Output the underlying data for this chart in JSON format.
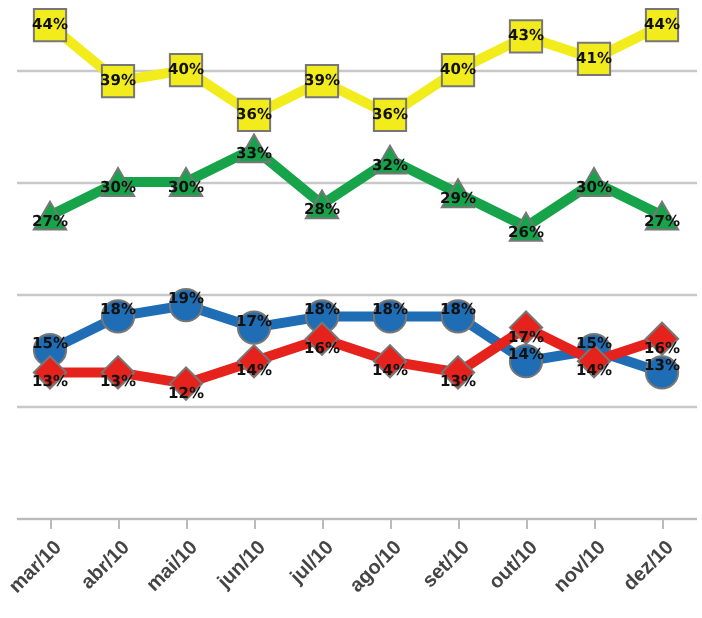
{
  "chart_data": {
    "type": "line",
    "categories": [
      "mar/10",
      "abr/10",
      "mai/10",
      "jun/10",
      "jul/10",
      "ago/10",
      "set/10",
      "out/10",
      "nov/10",
      "dez/10"
    ],
    "series": [
      {
        "color": "#f2ec1c",
        "marker": "square",
        "values": [
          44,
          39,
          40,
          36,
          39,
          36,
          40,
          43,
          41,
          44
        ],
        "value_labels": [
          "44%",
          "39%",
          "40%",
          "36%",
          "39%",
          "36%",
          "40%",
          "43%",
          "41%",
          "44%"
        ]
      },
      {
        "color": "#16a34a",
        "marker": "triangle",
        "values": [
          27,
          30,
          30,
          33,
          28,
          32,
          29,
          26,
          30,
          27
        ],
        "value_labels": [
          "27%",
          "30%",
          "30%",
          "33%",
          "28%",
          "32%",
          "29%",
          "26%",
          "30%",
          "27%"
        ]
      },
      {
        "color": "#1f6db5",
        "marker": "circle",
        "values": [
          15,
          18,
          19,
          17,
          18,
          18,
          18,
          14,
          15,
          13
        ],
        "value_labels": [
          "15%",
          "18%",
          "19%",
          "17%",
          "18%",
          "18%",
          "18%",
          "14%",
          "15%",
          "13%"
        ]
      },
      {
        "color": "#e5221c",
        "marker": "diamond",
        "values": [
          13,
          13,
          12,
          14,
          16,
          14,
          13,
          17,
          14,
          16
        ],
        "value_labels": [
          "13%",
          "13%",
          "12%",
          "14%",
          "16%",
          "14%",
          "13%",
          "17%",
          "14%",
          "16%"
        ]
      }
    ],
    "tick_labels": "x",
    "grid": "y"
  }
}
